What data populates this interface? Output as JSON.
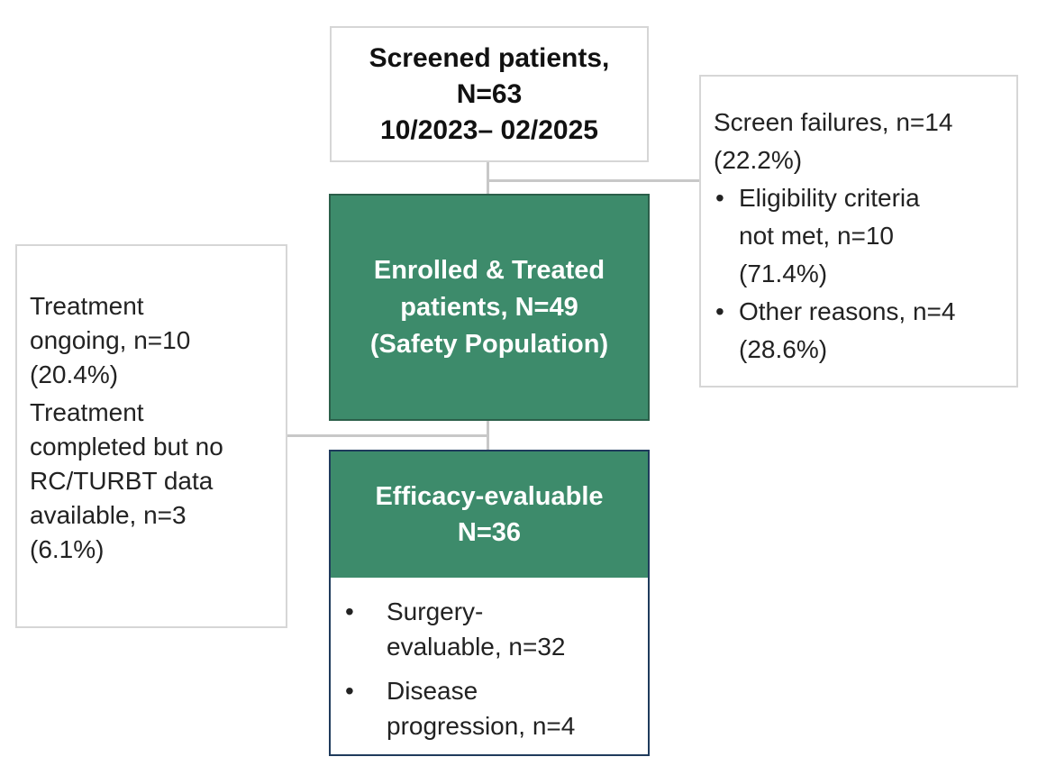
{
  "screened": {
    "line1": "Screened patients,",
    "line2": "N=63",
    "line3": "10/2023– 02/2025"
  },
  "screen_failures": {
    "line1": "Screen failures, n=14",
    "line2": "(22.2%)",
    "bullets": [
      {
        "lines": [
          "Eligibility criteria",
          "not met, n=10",
          "(71.4%)"
        ]
      },
      {
        "lines": [
          "Other reasons, n=4",
          "(28.6%)"
        ]
      }
    ],
    "bullet_char": "•"
  },
  "enrolled": {
    "line1": "Enrolled & Treated",
    "line2": "patients, N=49",
    "line3": "(Safety Population)"
  },
  "treatment": {
    "groups": [
      {
        "lines": [
          "Treatment",
          "ongoing, n=10",
          "(20.4%)"
        ]
      },
      {
        "lines": [
          "Treatment",
          "completed but no",
          "RC/TURBT data",
          "available, n=3",
          "(6.1%)"
        ]
      }
    ]
  },
  "efficacy": {
    "line1": "Efficacy-evaluable",
    "line2": "N=36",
    "bullet_char": "•",
    "bullets": [
      {
        "lines": [
          "Surgery-",
          "evaluable, n=32"
        ]
      },
      {
        "lines": [
          "Disease",
          "progression, n=4"
        ]
      }
    ]
  },
  "colors": {
    "green_fill": "#3d8b6b",
    "green_border": "#2b5f4a",
    "grey_border": "#d6d6d6",
    "connector": "#c8c8c8",
    "efficacy_border": "#1f3b5c"
  }
}
